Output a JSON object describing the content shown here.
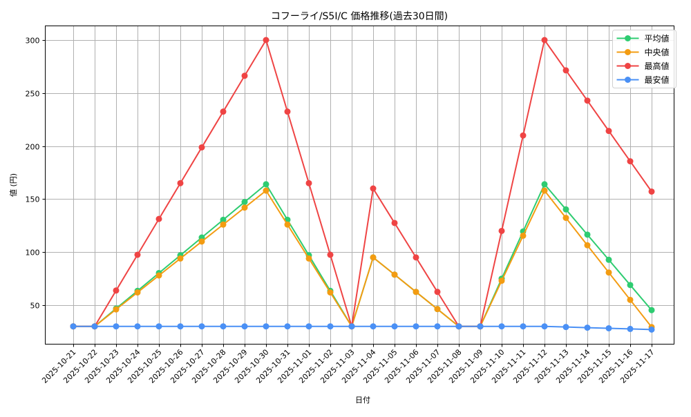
{
  "chart_data": {
    "type": "line",
    "title": "コフーライ/S5I/C 価格推移(過去30日間)",
    "xlabel": "日付",
    "ylabel": "値 (円)",
    "ylim": [
      13,
      313
    ],
    "yticks": [
      50,
      100,
      150,
      200,
      250,
      300
    ],
    "grid": true,
    "legend_position": "upper right",
    "categories": [
      "2025-10-21",
      "2025-10-22",
      "2025-10-23",
      "2025-10-24",
      "2025-10-25",
      "2025-10-26",
      "2025-10-27",
      "2025-10-28",
      "2025-10-29",
      "2025-10-30",
      "2025-10-31",
      "2025-11-01",
      "2025-11-02",
      "2025-11-03",
      "2025-11-04",
      "2025-11-05",
      "2025-11-06",
      "2025-11-07",
      "2025-11-08",
      "2025-11-09",
      "2025-11-10",
      "2025-11-11",
      "2025-11-12",
      "2025-11-13",
      "2025-11-14",
      "2025-11-15",
      "2025-11-16",
      "2025-11-17"
    ],
    "series": [
      {
        "name": "平均値",
        "color": "#2ecc71",
        "values": [
          30,
          30,
          46.8,
          63.5,
          80.3,
          97,
          113.8,
          130.5,
          147.3,
          164,
          130.5,
          97,
          63.5,
          30,
          95,
          78.8,
          62.5,
          46.3,
          30,
          30,
          75,
          119.5,
          164,
          140.3,
          116.5,
          92.8,
          69,
          45.3
        ]
      },
      {
        "name": "中央値",
        "color": "#f39c12",
        "values": [
          30,
          30,
          46,
          62,
          78,
          94,
          110,
          126,
          142,
          158,
          126,
          94,
          62,
          30,
          95,
          78.8,
          62.5,
          46.3,
          30,
          30,
          73,
          115.5,
          158,
          132.3,
          106.5,
          80.8,
          55,
          29.3
        ]
      },
      {
        "name": "最高値",
        "color": "#ef4444",
        "values": [
          30,
          30,
          63.8,
          97.5,
          131.3,
          165,
          198.8,
          232.5,
          266.3,
          300,
          232.5,
          165,
          97.5,
          30,
          160,
          127.5,
          95,
          62.5,
          30,
          30,
          120,
          210,
          300,
          271.4,
          242.9,
          214.3,
          185.7,
          157.1
        ]
      },
      {
        "name": "最安値",
        "color": "#4a90f5",
        "values": [
          30,
          30,
          30,
          30,
          30,
          30,
          30,
          30,
          30,
          30,
          30,
          30,
          30,
          30,
          30,
          30,
          30,
          30,
          30,
          30,
          30,
          30,
          30,
          29.4,
          28.8,
          28.2,
          27.6,
          27
        ]
      }
    ]
  }
}
